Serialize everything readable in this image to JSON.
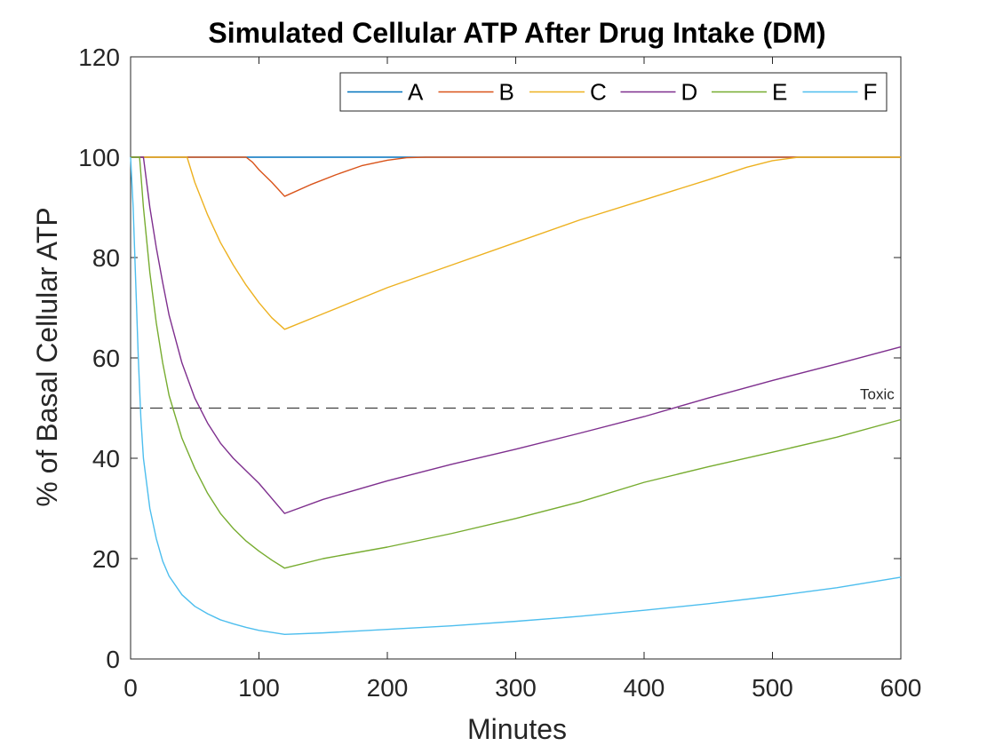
{
  "chart_data": {
    "type": "line",
    "title": "Simulated Cellular ATP After Drug Intake (DM)",
    "xlabel": "Minutes",
    "ylabel": "% of Basal Cellular ATP",
    "xlim": [
      0,
      600
    ],
    "ylim": [
      0,
      120
    ],
    "xticks": [
      0,
      100,
      200,
      300,
      400,
      500,
      600
    ],
    "yticks": [
      0,
      20,
      40,
      60,
      80,
      100,
      120
    ],
    "grid": false,
    "legend_position": "top-right",
    "legend_orientation": "horizontal",
    "series": [
      {
        "name": "A",
        "color": "#0072BD",
        "points": [
          [
            0,
            100
          ],
          [
            600,
            100
          ]
        ]
      },
      {
        "name": "B",
        "color": "#D95319",
        "points": [
          [
            0,
            100
          ],
          [
            90,
            100
          ],
          [
            95,
            99
          ],
          [
            100,
            97.5
          ],
          [
            110,
            95
          ],
          [
            120,
            92.2
          ],
          [
            140,
            94.5
          ],
          [
            160,
            96.5
          ],
          [
            180,
            98.3
          ],
          [
            200,
            99.4
          ],
          [
            215,
            99.9
          ],
          [
            230,
            100
          ],
          [
            600,
            100
          ]
        ]
      },
      {
        "name": "C",
        "color": "#EDB120",
        "points": [
          [
            0,
            100
          ],
          [
            44,
            100
          ],
          [
            50,
            95
          ],
          [
            60,
            88.5
          ],
          [
            70,
            83
          ],
          [
            80,
            78.5
          ],
          [
            90,
            74.5
          ],
          [
            100,
            71
          ],
          [
            110,
            68
          ],
          [
            120,
            65.7
          ],
          [
            150,
            68.8
          ],
          [
            200,
            74
          ],
          [
            250,
            78.5
          ],
          [
            300,
            83
          ],
          [
            350,
            87.5
          ],
          [
            400,
            91.5
          ],
          [
            450,
            95.5
          ],
          [
            480,
            98
          ],
          [
            500,
            99.3
          ],
          [
            520,
            100
          ],
          [
            600,
            100
          ]
        ]
      },
      {
        "name": "D",
        "color": "#7E2F8E",
        "points": [
          [
            0,
            100
          ],
          [
            10,
            100
          ],
          [
            15,
            90
          ],
          [
            20,
            82
          ],
          [
            25,
            75
          ],
          [
            30,
            68.5
          ],
          [
            40,
            59
          ],
          [
            50,
            52
          ],
          [
            60,
            47
          ],
          [
            70,
            43
          ],
          [
            80,
            40
          ],
          [
            90,
            37.5
          ],
          [
            100,
            35
          ],
          [
            110,
            32
          ],
          [
            120,
            29
          ],
          [
            150,
            31.8
          ],
          [
            200,
            35.5
          ],
          [
            250,
            38.8
          ],
          [
            300,
            41.8
          ],
          [
            350,
            45
          ],
          [
            400,
            48.3
          ],
          [
            450,
            52
          ],
          [
            500,
            55.5
          ],
          [
            550,
            58.8
          ],
          [
            600,
            62.2
          ]
        ]
      },
      {
        "name": "E",
        "color": "#77AC30",
        "points": [
          [
            0,
            100
          ],
          [
            7,
            100
          ],
          [
            10,
            90
          ],
          [
            15,
            77
          ],
          [
            20,
            67
          ],
          [
            25,
            59
          ],
          [
            30,
            52.5
          ],
          [
            40,
            44
          ],
          [
            50,
            38
          ],
          [
            60,
            33
          ],
          [
            70,
            29
          ],
          [
            80,
            26
          ],
          [
            90,
            23.5
          ],
          [
            100,
            21.5
          ],
          [
            110,
            19.7
          ],
          [
            120,
            18.1
          ],
          [
            150,
            20
          ],
          [
            200,
            22.3
          ],
          [
            250,
            25
          ],
          [
            300,
            28
          ],
          [
            350,
            31.3
          ],
          [
            400,
            35.2
          ],
          [
            450,
            38.3
          ],
          [
            500,
            41.2
          ],
          [
            550,
            44.2
          ],
          [
            600,
            47.7
          ]
        ]
      },
      {
        "name": "F",
        "color": "#4DBEEE",
        "points": [
          [
            0,
            100
          ],
          [
            2,
            90
          ],
          [
            4,
            75
          ],
          [
            6,
            60
          ],
          [
            8,
            48
          ],
          [
            10,
            40
          ],
          [
            15,
            30
          ],
          [
            20,
            24
          ],
          [
            25,
            19.5
          ],
          [
            30,
            16.5
          ],
          [
            40,
            12.8
          ],
          [
            50,
            10.5
          ],
          [
            60,
            9
          ],
          [
            70,
            7.8
          ],
          [
            80,
            7
          ],
          [
            90,
            6.3
          ],
          [
            100,
            5.7
          ],
          [
            110,
            5.3
          ],
          [
            120,
            4.9
          ],
          [
            150,
            5.2
          ],
          [
            200,
            5.9
          ],
          [
            250,
            6.6
          ],
          [
            300,
            7.5
          ],
          [
            350,
            8.5
          ],
          [
            400,
            9.7
          ],
          [
            450,
            11
          ],
          [
            500,
            12.5
          ],
          [
            550,
            14.2
          ],
          [
            600,
            16.3
          ]
        ]
      }
    ],
    "reference_line": {
      "y": 50,
      "style": "dashed",
      "color": "#262626",
      "label": "Toxic",
      "label_x": 595
    }
  }
}
